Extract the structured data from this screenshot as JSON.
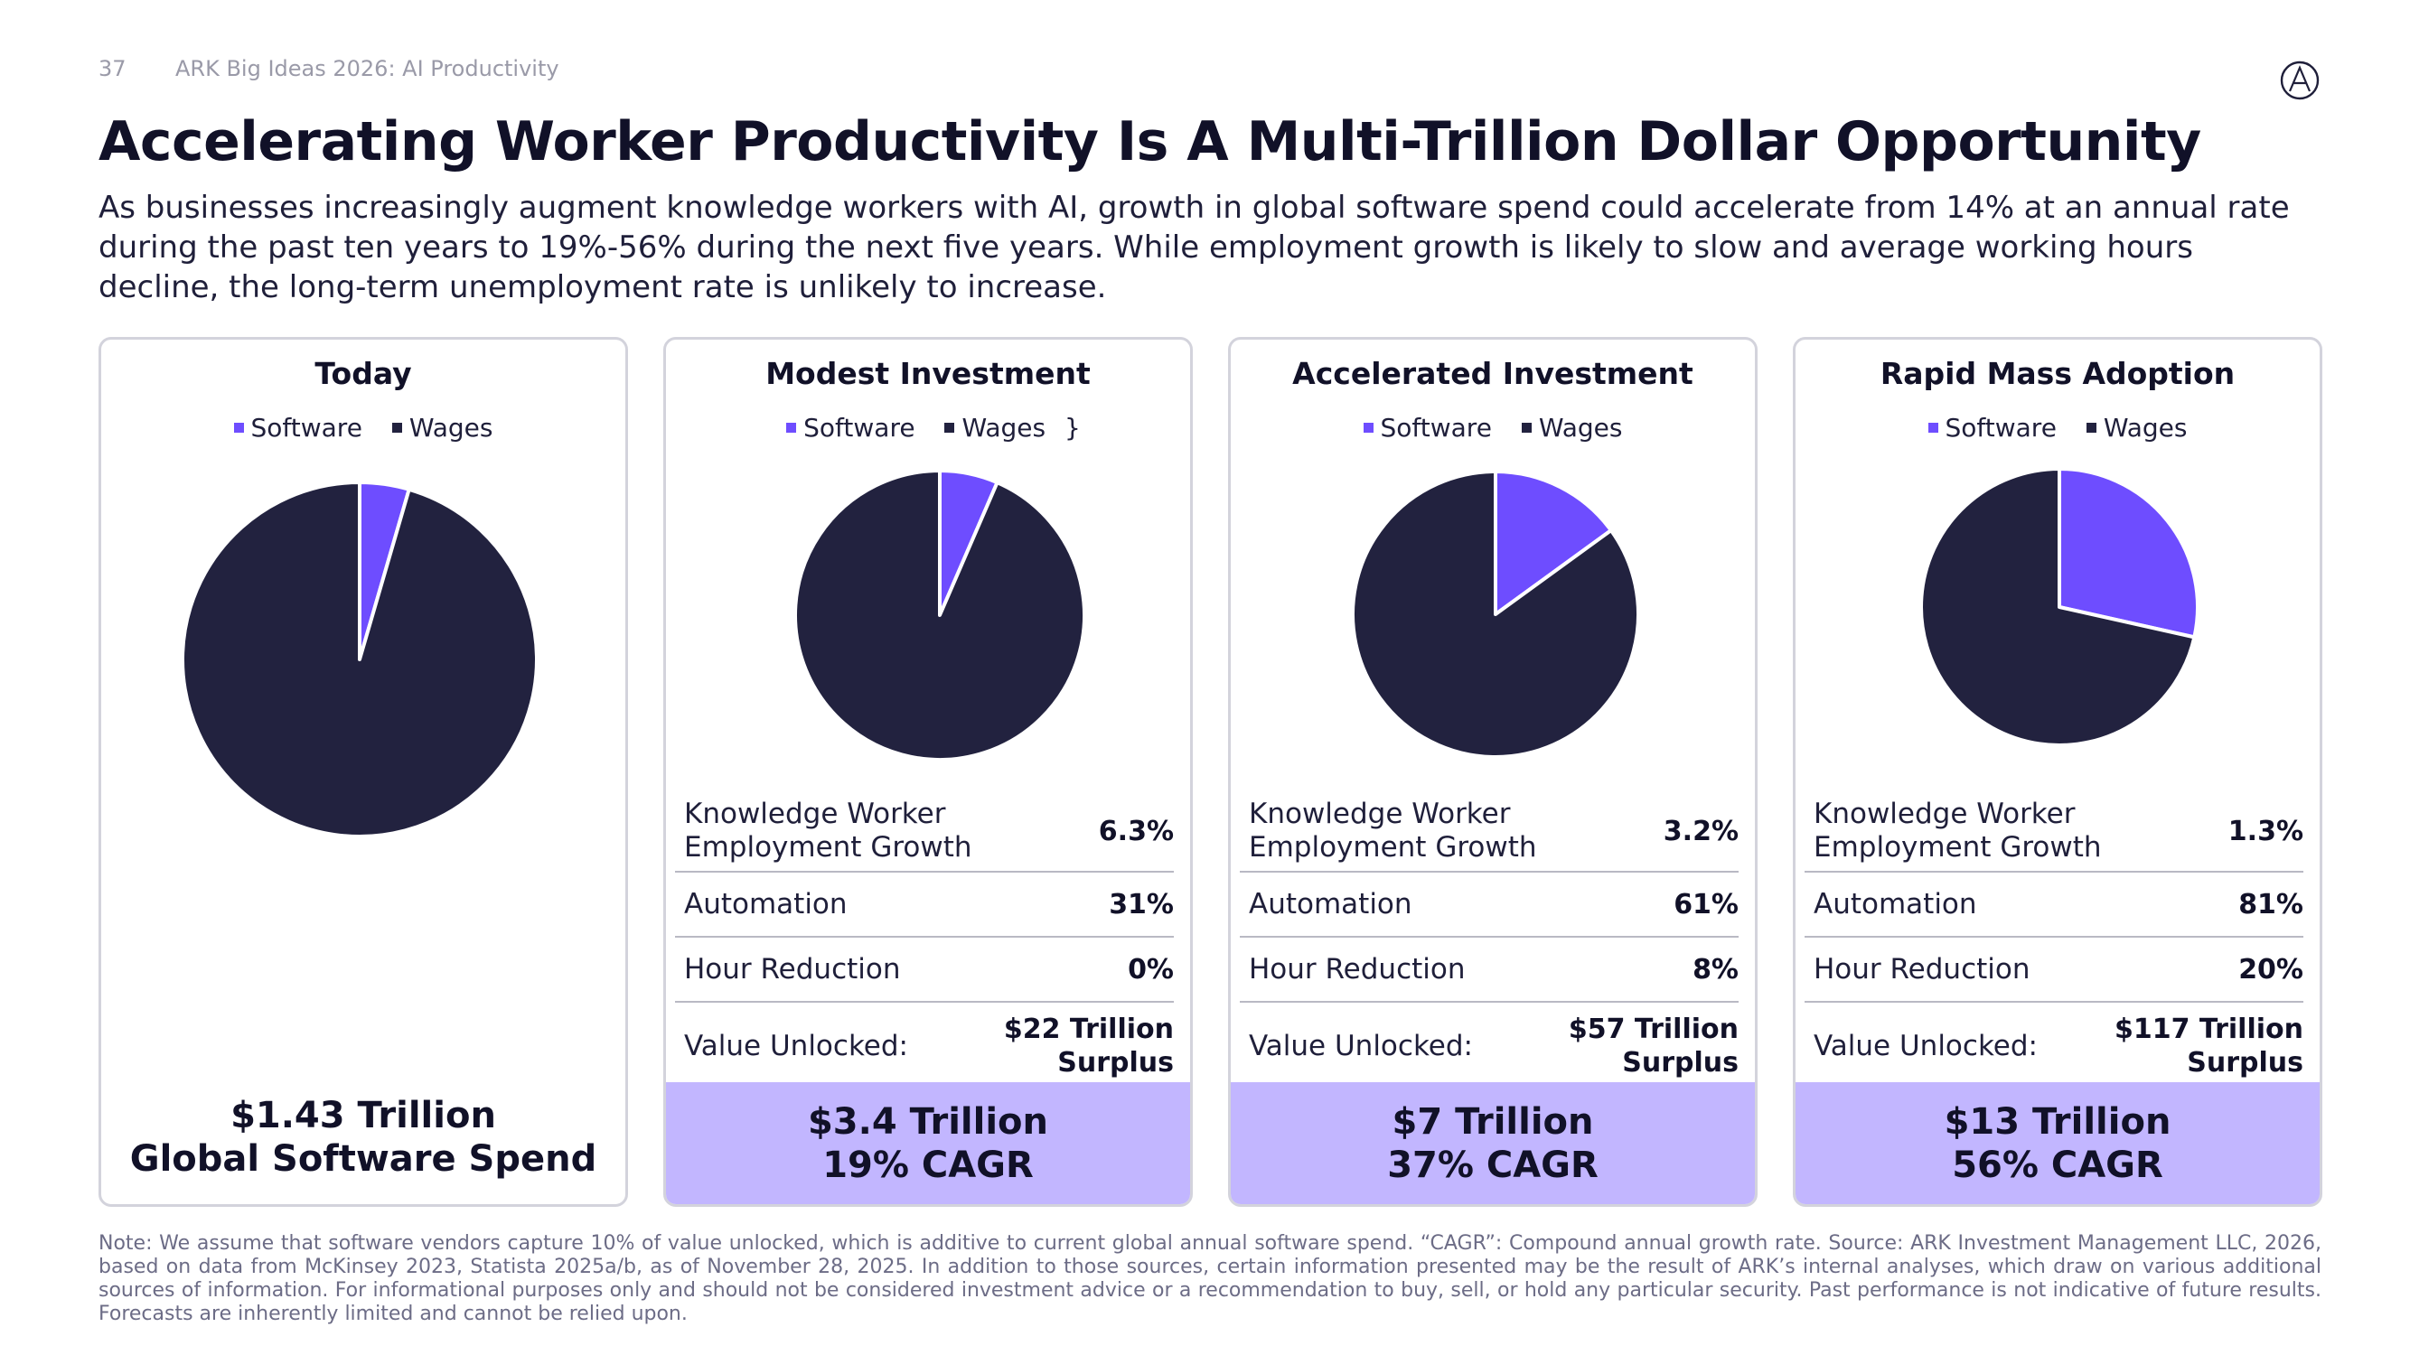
{
  "header": {
    "page_number": "37",
    "deck_title": "ARK Big Ideas 2026: AI Productivity",
    "title": "Accelerating Worker Productivity Is A Multi-Trillion Dollar Opportunity",
    "subtitle": "As businesses increasingly augment knowledge workers with AI, growth in global software spend could accelerate from 14% at an annual rate during the past ten years to 19%-56% during the next five years. While employment growth is likely to slow and average working hours decline, the long-term unemployment rate is unlikely to increase."
  },
  "colors": {
    "software": "#6e4dff",
    "wages": "#22223f",
    "band": "#c2b6ff"
  },
  "row_labels": {
    "employment": "Knowledge Worker Employment Growth",
    "automation": "Automation",
    "hours": "Hour Reduction",
    "value": "Value Unlocked:"
  },
  "scenarios": [
    {
      "title": "Today",
      "legend": [
        "Software",
        "Wages"
      ],
      "footer_line1": "$1.43 Trillion",
      "footer_line2": "Global Software Spend"
    },
    {
      "title": "Modest Investment",
      "legend": [
        "Software",
        "Wages"
      ],
      "employment_growth": "6.3%",
      "automation": "31%",
      "hour_reduction": "0%",
      "value_unlocked_amount": "$22 Trillion",
      "value_unlocked_suffix": "Surplus",
      "footer_line1": "$3.4 Trillion",
      "footer_line2": "19% CAGR"
    },
    {
      "title": "Accelerated Investment",
      "legend": [
        "Software",
        "Wages"
      ],
      "employment_growth": "3.2%",
      "automation": "61%",
      "hour_reduction": "8%",
      "value_unlocked_amount": "$57 Trillion",
      "value_unlocked_suffix": "Surplus",
      "footer_line1": "$7 Trillion",
      "footer_line2": "37% CAGR"
    },
    {
      "title": "Rapid Mass Adoption",
      "legend": [
        "Software",
        "Wages"
      ],
      "employment_growth": "1.3%",
      "automation": "81%",
      "hour_reduction": "20%",
      "value_unlocked_amount": "$117 Trillion",
      "value_unlocked_suffix": "Surplus",
      "footer_line1": "$13 Trillion",
      "footer_line2": "56% CAGR"
    }
  ],
  "chart_data": [
    {
      "type": "pie",
      "title": "Today",
      "categories": [
        "Software",
        "Wages"
      ],
      "values": [
        4.5,
        95.5
      ],
      "unit": "share %"
    },
    {
      "type": "pie",
      "title": "Modest Investment",
      "categories": [
        "Software",
        "Wages"
      ],
      "values": [
        6.5,
        93.5
      ],
      "unit": "share %"
    },
    {
      "type": "pie",
      "title": "Accelerated Investment",
      "categories": [
        "Software",
        "Wages"
      ],
      "values": [
        15,
        85
      ],
      "unit": "share %"
    },
    {
      "type": "pie",
      "title": "Rapid Mass Adoption",
      "categories": [
        "Software",
        "Wages"
      ],
      "values": [
        28.5,
        71.5
      ],
      "unit": "share %"
    }
  ],
  "note": "Note: We assume that software vendors capture 10% of value unlocked, which is additive to current global annual software spend. “CAGR”: Compound annual growth rate. Source: ARK Investment Management LLC, 2026, based on data from McKinsey 2023, Statista 2025a/b, as of November 28, 2025. In addition to those sources, certain information presented may be the result of ARK’s internal analyses, which draw on various additional sources of information. For informational purposes only and should not be considered investment advice or a recommendation to buy, sell, or hold any particular security. Past performance is not indicative of future results. Forecasts are inherently limited and cannot be relied upon."
}
